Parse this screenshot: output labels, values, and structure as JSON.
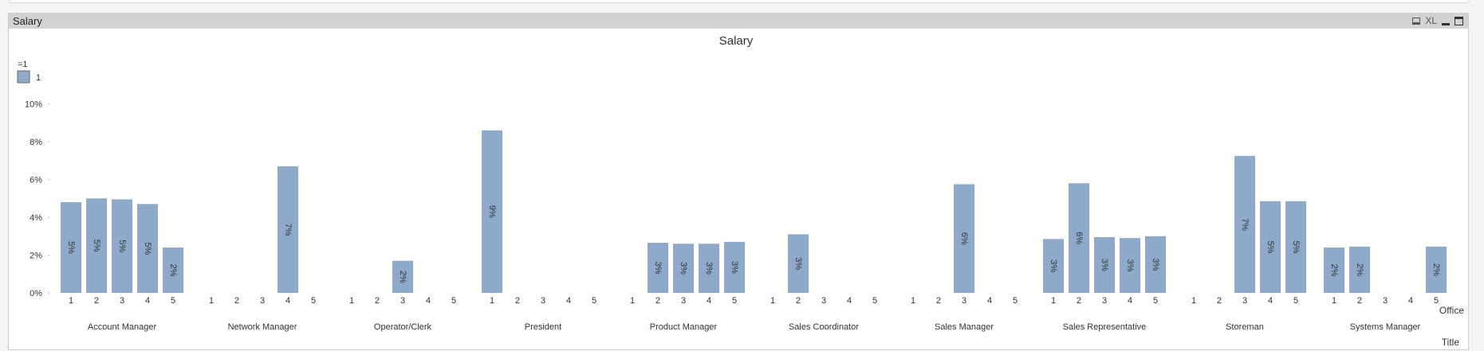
{
  "window": {
    "title": "Salary",
    "icons": [
      "print-icon",
      "xl-export-icon",
      "minimize-icon",
      "maximize-icon"
    ],
    "xl_label": "XL"
  },
  "chart_data": {
    "type": "bar",
    "title": "Salary",
    "legend": {
      "title": "=1",
      "entries": [
        "1"
      ],
      "placement": "top-left"
    },
    "xlabel_inner": "Office",
    "xlabel_outer": "Title",
    "ylabel": "",
    "ylim": [
      0,
      10
    ],
    "yticks": [
      "0%",
      "2%",
      "4%",
      "6%",
      "8%",
      "10%"
    ],
    "bar_color": "#8ea9c9",
    "offices": [
      "1",
      "2",
      "3",
      "4",
      "5"
    ],
    "groups": [
      {
        "title": "Account Manager",
        "values": [
          4.8,
          5.0,
          4.95,
          4.7,
          2.4
        ],
        "labels": [
          "5%",
          "5%",
          "5%",
          "5%",
          "2%"
        ]
      },
      {
        "title": "Network Manager",
        "values": [
          null,
          null,
          null,
          6.7,
          null
        ],
        "labels": [
          "",
          "",
          "",
          "7%",
          ""
        ]
      },
      {
        "title": "Operator/Clerk",
        "values": [
          null,
          null,
          1.7,
          null,
          null
        ],
        "labels": [
          "",
          "",
          "2%",
          "",
          ""
        ]
      },
      {
        "title": "President",
        "values": [
          8.6,
          null,
          null,
          null,
          null
        ],
        "labels": [
          "9%",
          "",
          "",
          "",
          ""
        ]
      },
      {
        "title": "Product Manager",
        "values": [
          null,
          2.65,
          2.6,
          2.6,
          2.7
        ],
        "labels": [
          "",
          "3%",
          "3%",
          "3%",
          "3%"
        ]
      },
      {
        "title": "Sales Coordinator",
        "values": [
          null,
          3.1,
          null,
          null,
          null
        ],
        "labels": [
          "",
          "3%",
          "",
          "",
          ""
        ]
      },
      {
        "title": "Sales Manager",
        "values": [
          null,
          null,
          5.75,
          null,
          null
        ],
        "labels": [
          "",
          "",
          "6%",
          "",
          ""
        ]
      },
      {
        "title": "Sales Representative",
        "values": [
          2.85,
          5.8,
          2.95,
          2.9,
          3.0
        ],
        "labels": [
          "3%",
          "6%",
          "3%",
          "3%",
          "3%"
        ]
      },
      {
        "title": "Storeman",
        "values": [
          null,
          null,
          7.25,
          4.85,
          4.85
        ],
        "labels": [
          "",
          "",
          "7%",
          "5%",
          "5%"
        ]
      },
      {
        "title": "Systems Manager",
        "values": [
          2.4,
          2.45,
          null,
          null,
          2.45
        ],
        "labels": [
          "2%",
          "2%",
          "",
          "",
          "2%"
        ]
      }
    ]
  }
}
